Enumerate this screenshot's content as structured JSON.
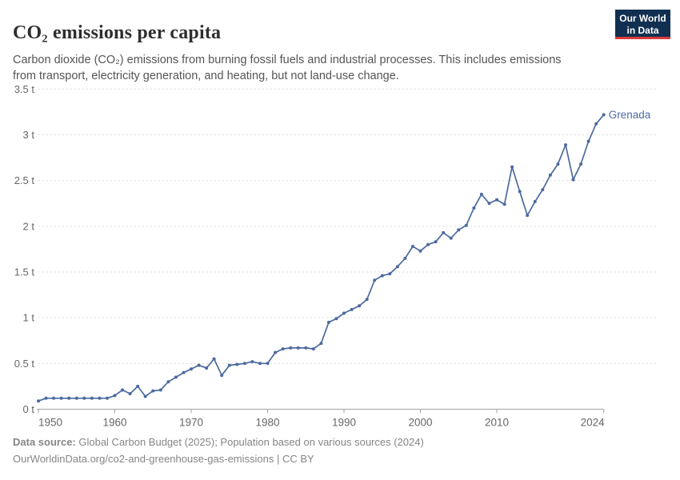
{
  "header": {
    "title": "CO₂ emissions per capita",
    "subtitle": "Carbon dioxide (CO₂) emissions from burning fossil fuels and industrial processes. This includes emissions from transport, electricity generation, and heating, but not land-use change."
  },
  "logo": {
    "line1": "Our World",
    "line2": "in Data"
  },
  "chart_data": {
    "type": "line",
    "title": "CO₂ emissions per capita",
    "xlabel": "",
    "ylabel": "",
    "unit": "t",
    "xlim": [
      1950,
      2024
    ],
    "ylim": [
      0,
      3.5
    ],
    "grid": true,
    "legend_position": "end-of-line-label",
    "xticks": [
      {
        "value": 1950,
        "label": "1950"
      },
      {
        "value": 1960,
        "label": "1960"
      },
      {
        "value": 1970,
        "label": "1970"
      },
      {
        "value": 1980,
        "label": "1980"
      },
      {
        "value": 1990,
        "label": "1990"
      },
      {
        "value": 2000,
        "label": "2000"
      },
      {
        "value": 2010,
        "label": "2010"
      },
      {
        "value": 2024,
        "label": "2024"
      }
    ],
    "yticks": [
      {
        "value": 0,
        "label": "0 t"
      },
      {
        "value": 0.5,
        "label": "0.5 t"
      },
      {
        "value": 1,
        "label": "1 t"
      },
      {
        "value": 1.5,
        "label": "1.5 t"
      },
      {
        "value": 2,
        "label": "2 t"
      },
      {
        "value": 2.5,
        "label": "2.5 t"
      },
      {
        "value": 3,
        "label": "3 t"
      },
      {
        "value": 3.5,
        "label": "3.5 t"
      }
    ],
    "x": [
      1950,
      1951,
      1952,
      1953,
      1954,
      1955,
      1956,
      1957,
      1958,
      1959,
      1960,
      1961,
      1962,
      1963,
      1964,
      1965,
      1966,
      1967,
      1968,
      1969,
      1970,
      1971,
      1972,
      1973,
      1974,
      1975,
      1976,
      1977,
      1978,
      1979,
      1980,
      1981,
      1982,
      1983,
      1984,
      1985,
      1986,
      1987,
      1988,
      1989,
      1990,
      1991,
      1992,
      1993,
      1994,
      1995,
      1996,
      1997,
      1998,
      1999,
      2000,
      2001,
      2002,
      2003,
      2004,
      2005,
      2006,
      2007,
      2008,
      2009,
      2010,
      2011,
      2012,
      2013,
      2014,
      2015,
      2016,
      2017,
      2018,
      2019,
      2020,
      2021,
      2022,
      2023,
      2024
    ],
    "series": [
      {
        "name": "Grenada",
        "end_label": "Grenada",
        "values": [
          0.09,
          0.12,
          0.12,
          0.12,
          0.12,
          0.12,
          0.12,
          0.12,
          0.12,
          0.12,
          0.15,
          0.21,
          0.17,
          0.25,
          0.14,
          0.2,
          0.21,
          0.3,
          0.35,
          0.4,
          0.44,
          0.48,
          0.45,
          0.55,
          0.37,
          0.48,
          0.49,
          0.5,
          0.52,
          0.5,
          0.5,
          0.62,
          0.66,
          0.67,
          0.67,
          0.67,
          0.66,
          0.72,
          0.95,
          0.99,
          1.05,
          1.09,
          1.13,
          1.2,
          1.41,
          1.46,
          1.48,
          1.56,
          1.65,
          1.78,
          1.73,
          1.8,
          1.83,
          1.93,
          1.87,
          1.96,
          2.01,
          2.2,
          2.35,
          2.25,
          2.29,
          2.24,
          2.65,
          2.38,
          2.12,
          2.27,
          2.4,
          2.56,
          2.68,
          2.89,
          2.51,
          2.68,
          2.93,
          3.12,
          3.22
        ]
      }
    ]
  },
  "footer": {
    "source_label": "Data source:",
    "source_text": " Global Carbon Budget (2025); Population based on various sources (2024)",
    "url": "OurWorldinData.org/co2-and-greenhouse-gas-emissions",
    "separator": " | ",
    "license": "CC BY"
  },
  "colors": {
    "line": "#4c6a9f",
    "entity_label": "#4d6ba8",
    "grid": "#dcdcdc",
    "axis": "#a3a3a3",
    "tick_text": "#666666",
    "title_text": "#2e2e2e",
    "subtitle_text": "#555555",
    "footer_text": "#858585",
    "logo_bg": "#112f51",
    "logo_red": "#dc3a3d"
  }
}
